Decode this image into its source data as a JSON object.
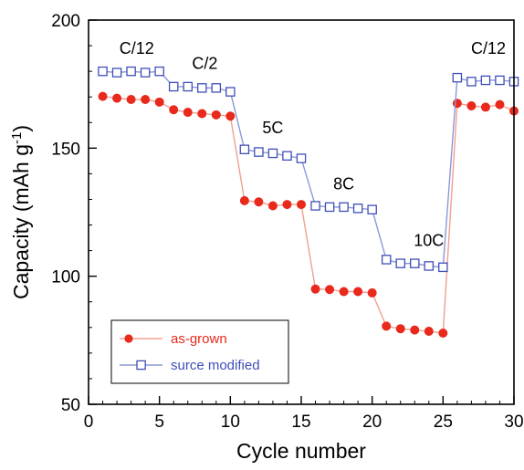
{
  "chart_data": {
    "type": "line",
    "xlabel": "Cycle number",
    "ylabel": "Capacity (mAh g",
    "ylabel_superscript": "-1",
    "ylabel_suffix": ")",
    "xlim": [
      0,
      30
    ],
    "ylim": [
      50,
      200
    ],
    "xticks": [
      0,
      5,
      10,
      15,
      20,
      25,
      30
    ],
    "yticks": [
      50,
      100,
      150,
      200
    ],
    "grid": false,
    "legend_position": "bottom-left",
    "series": [
      {
        "name": "as-grown",
        "marker": "filled-circle",
        "color": "#e8291c",
        "line_color": "#f0a090",
        "x": [
          1,
          2,
          3,
          4,
          5,
          6,
          7,
          8,
          9,
          10,
          11,
          12,
          13,
          14,
          15,
          16,
          17,
          18,
          19,
          20,
          21,
          22,
          23,
          24,
          25,
          26,
          27,
          28,
          29,
          30
        ],
        "y": [
          170.2,
          169.5,
          169.0,
          169.0,
          168.0,
          165.0,
          164.0,
          163.5,
          163.0,
          162.5,
          129.5,
          129.0,
          127.5,
          128.0,
          128.0,
          95.0,
          94.8,
          94.0,
          94.0,
          93.5,
          80.5,
          79.5,
          79.0,
          78.5,
          77.8,
          167.5,
          166.5,
          166.0,
          167.0,
          164.5
        ]
      },
      {
        "name": "surce modified",
        "marker": "open-square",
        "color": "#3f4fb8",
        "line_color": "#8c98d6",
        "x": [
          1,
          2,
          3,
          4,
          5,
          6,
          7,
          8,
          9,
          10,
          11,
          12,
          13,
          14,
          15,
          16,
          17,
          18,
          19,
          20,
          21,
          22,
          23,
          24,
          25,
          26,
          27,
          28,
          29,
          30
        ],
        "y": [
          180.0,
          179.5,
          180.0,
          179.5,
          180.0,
          174.0,
          174.0,
          173.5,
          173.5,
          172.0,
          149.5,
          148.5,
          148.0,
          147.0,
          146.0,
          127.5,
          127.0,
          127.0,
          126.5,
          126.0,
          106.5,
          105.0,
          105.0,
          104.0,
          103.5,
          177.5,
          176.0,
          176.5,
          176.5,
          176.0
        ]
      }
    ],
    "annotations": [
      {
        "text": "C/12",
        "x": 3.4,
        "y": 189
      },
      {
        "text": "C/2",
        "x": 8.2,
        "y": 183
      },
      {
        "text": "5C",
        "x": 13.0,
        "y": 158
      },
      {
        "text": "8C",
        "x": 18.0,
        "y": 136
      },
      {
        "text": "10C",
        "x": 24.0,
        "y": 114
      },
      {
        "text": "C/12",
        "x": 28.2,
        "y": 189
      }
    ]
  }
}
